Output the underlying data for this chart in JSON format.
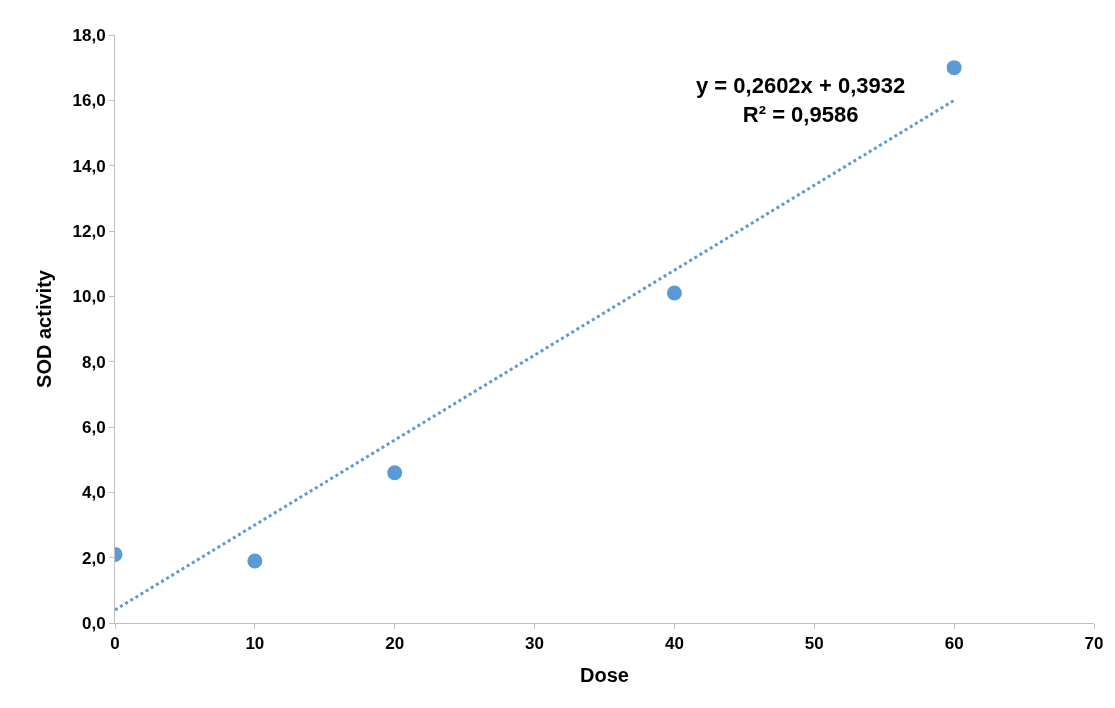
{
  "chart_data": {
    "type": "scatter",
    "xlabel": "Dose",
    "ylabel": "SOD activity",
    "x": [
      0,
      10,
      20,
      40,
      60
    ],
    "series": [
      {
        "color": "#5b9bd5",
        "marker": "circle",
        "values": [
          2.1,
          1.9,
          4.6,
          10.1,
          17.0
        ]
      },
      {
        "type": "line",
        "color": "#5b9bd5",
        "marker": "none",
        "line_style": "dotted",
        "x": [
          0,
          60
        ],
        "values": [
          0.4,
          16.0
        ]
      }
    ],
    "annotations": [
      "y = 0,2602x + 0,3932\nR² = 0,9586"
    ],
    "xlim": [
      0,
      70
    ],
    "xticks": [
      0,
      10,
      20,
      30,
      40,
      50,
      60,
      70
    ],
    "ylim": [
      0,
      18
    ],
    "yticks": [
      {
        "value": 0,
        "label": "0,0"
      },
      {
        "value": 2,
        "label": "2,0"
      },
      {
        "value": 4,
        "label": "4,0"
      },
      {
        "value": 6,
        "label": "6,0"
      },
      {
        "value": 8,
        "label": "8,0"
      },
      {
        "value": 10,
        "label": "10,0"
      },
      {
        "value": 12,
        "label": "12,0"
      },
      {
        "value": 14,
        "label": "14,0"
      },
      {
        "value": 16,
        "label": "16,0"
      },
      {
        "value": 18,
        "label": "18,0"
      }
    ]
  }
}
